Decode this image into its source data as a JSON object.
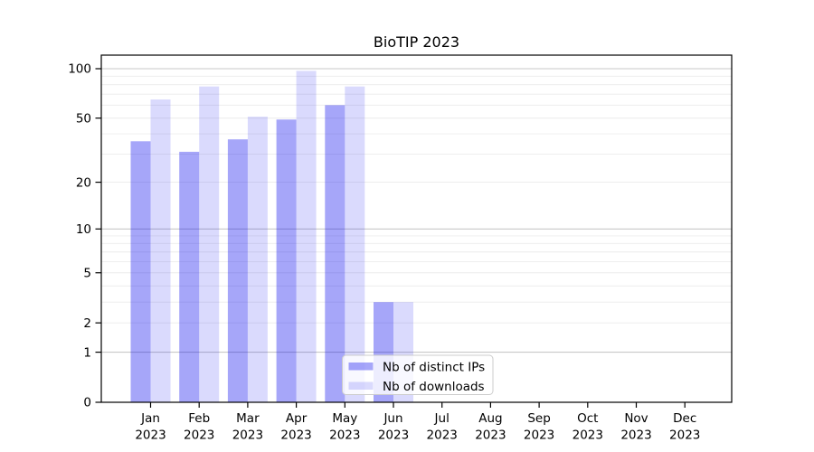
{
  "title": "BioTIP 2023",
  "chart_data": {
    "type": "bar",
    "title": "BioTIP 2023",
    "scale": "log10(1+y)",
    "categories": [
      "Jan 2023",
      "Feb 2023",
      "Mar 2023",
      "Apr 2023",
      "May 2023",
      "Jun 2023",
      "Jul 2023",
      "Aug 2023",
      "Sep 2023",
      "Oct 2023",
      "Nov 2023",
      "Dec 2023"
    ],
    "month_labels": [
      "Jan",
      "Feb",
      "Mar",
      "Apr",
      "May",
      "Jun",
      "Jul",
      "Aug",
      "Sep",
      "Oct",
      "Nov",
      "Dec"
    ],
    "year_label": "2023",
    "series": [
      {
        "name": "Nb of distinct IPs",
        "color": "rgba(0,0,238,0.35)",
        "values": [
          36,
          31,
          37,
          49,
          60,
          3,
          0,
          0,
          0,
          0,
          0,
          0
        ]
      },
      {
        "name": "Nb of downloads",
        "color": "rgba(0,0,238,0.145)",
        "values": [
          65,
          78,
          51,
          97,
          78,
          3,
          0,
          0,
          0,
          0,
          0,
          0
        ]
      }
    ],
    "y_axis": {
      "tick_values": [
        0,
        1,
        2,
        5,
        10,
        20,
        50,
        100
      ],
      "tick_labels": [
        "0",
        "1",
        "2",
        "5",
        "10",
        "20",
        "50",
        "100"
      ],
      "major_gridlines": [
        1,
        10,
        100
      ],
      "minor_gridlines": [
        2,
        3,
        4,
        5,
        6,
        7,
        8,
        9,
        20,
        30,
        40,
        50,
        60,
        70,
        80,
        90
      ],
      "ylim": [
        0,
        121
      ]
    },
    "legend": {
      "entries": [
        "Nb of distinct IPs",
        "Nb of downloads"
      ],
      "position": "lower center inside plot"
    },
    "grid": "on",
    "colors": {
      "grid_major": "#c8c8c8",
      "grid_minor": "#ececec",
      "axis": "#000000",
      "legend_border": "#cccccc",
      "legend_bg": "rgba(255,255,255,0.8)",
      "background": "#ffffff"
    }
  }
}
